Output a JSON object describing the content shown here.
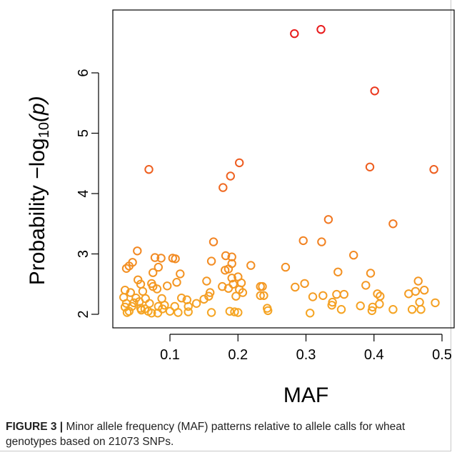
{
  "chart_data": {
    "type": "scatter",
    "xlabel": "MAF",
    "ylabel_prefix": "Probability  −log",
    "ylabel_sub": "10",
    "ylabel_suffix": "(p)",
    "xlim": [
      0.025,
      0.5
    ],
    "ylim": [
      2.0,
      6.72
    ],
    "xticks": [
      0.1,
      0.2,
      0.3,
      0.4,
      0.5
    ],
    "xtick_labels": [
      "0.1",
      "0.2",
      "0.3",
      "0.4",
      "0.5"
    ],
    "yticks": [
      2,
      3,
      4,
      5,
      6
    ],
    "ytick_labels": [
      "2",
      "3",
      "4",
      "5",
      "6"
    ],
    "grid": false,
    "marker": "open-circle",
    "color_scale": {
      "low": "#f5a623",
      "high": "#e8191c",
      "domain": [
        2.0,
        6.75
      ]
    },
    "points": [
      [
        0.283,
        6.65
      ],
      [
        0.322,
        6.72
      ],
      [
        0.401,
        5.7
      ],
      [
        0.202,
        4.51
      ],
      [
        0.394,
        4.44
      ],
      [
        0.488,
        4.4
      ],
      [
        0.069,
        4.4
      ],
      [
        0.189,
        4.29
      ],
      [
        0.178,
        4.1
      ],
      [
        0.333,
        3.57
      ],
      [
        0.428,
        3.5
      ],
      [
        0.296,
        3.22
      ],
      [
        0.323,
        3.2
      ],
      [
        0.164,
        3.2
      ],
      [
        0.052,
        3.05
      ],
      [
        0.37,
        2.98
      ],
      [
        0.191,
        2.95
      ],
      [
        0.182,
        2.97
      ],
      [
        0.078,
        2.94
      ],
      [
        0.087,
        2.93
      ],
      [
        0.104,
        2.93
      ],
      [
        0.108,
        2.92
      ],
      [
        0.161,
        2.88
      ],
      [
        0.045,
        2.86
      ],
      [
        0.191,
        2.84
      ],
      [
        0.04,
        2.8
      ],
      [
        0.036,
        2.76
      ],
      [
        0.083,
        2.78
      ],
      [
        0.219,
        2.81
      ],
      [
        0.27,
        2.78
      ],
      [
        0.075,
        2.69
      ],
      [
        0.181,
        2.73
      ],
      [
        0.186,
        2.75
      ],
      [
        0.395,
        2.68
      ],
      [
        0.347,
        2.7
      ],
      [
        0.465,
        2.55
      ],
      [
        0.115,
        2.67
      ],
      [
        0.2,
        2.62
      ],
      [
        0.191,
        2.6
      ],
      [
        0.053,
        2.57
      ],
      [
        0.073,
        2.51
      ],
      [
        0.11,
        2.53
      ],
      [
        0.205,
        2.52
      ],
      [
        0.193,
        2.5
      ],
      [
        0.057,
        2.5
      ],
      [
        0.075,
        2.46
      ],
      [
        0.177,
        2.46
      ],
      [
        0.186,
        2.43
      ],
      [
        0.298,
        2.51
      ],
      [
        0.388,
        2.48
      ],
      [
        0.154,
        2.55
      ],
      [
        0.236,
        2.46
      ],
      [
        0.202,
        2.41
      ],
      [
        0.233,
        2.46
      ],
      [
        0.284,
        2.45
      ],
      [
        0.06,
        2.38
      ],
      [
        0.042,
        2.36
      ],
      [
        0.096,
        2.47
      ],
      [
        0.081,
        2.42
      ],
      [
        0.034,
        2.4
      ],
      [
        0.159,
        2.36
      ],
      [
        0.207,
        2.36
      ],
      [
        0.157,
        2.3
      ],
      [
        0.345,
        2.33
      ],
      [
        0.356,
        2.33
      ],
      [
        0.405,
        2.34
      ],
      [
        0.409,
        2.3
      ],
      [
        0.451,
        2.34
      ],
      [
        0.461,
        2.38
      ],
      [
        0.474,
        2.4
      ],
      [
        0.233,
        2.31
      ],
      [
        0.238,
        2.31
      ],
      [
        0.197,
        2.3
      ],
      [
        0.31,
        2.29
      ],
      [
        0.325,
        2.31
      ],
      [
        0.05,
        2.27
      ],
      [
        0.064,
        2.26
      ],
      [
        0.088,
        2.26
      ],
      [
        0.117,
        2.27
      ],
      [
        0.125,
        2.24
      ],
      [
        0.139,
        2.18
      ],
      [
        0.15,
        2.25
      ],
      [
        0.032,
        2.28
      ],
      [
        0.047,
        2.19
      ],
      [
        0.055,
        2.21
      ],
      [
        0.07,
        2.18
      ],
      [
        0.083,
        2.13
      ],
      [
        0.092,
        2.15
      ],
      [
        0.107,
        2.13
      ],
      [
        0.127,
        2.13
      ],
      [
        0.044,
        2.13
      ],
      [
        0.036,
        2.18
      ],
      [
        0.338,
        2.15
      ],
      [
        0.339,
        2.2
      ],
      [
        0.38,
        2.14
      ],
      [
        0.398,
        2.12
      ],
      [
        0.408,
        2.17
      ],
      [
        0.428,
        2.08
      ],
      [
        0.456,
        2.08
      ],
      [
        0.469,
        2.08
      ],
      [
        0.467,
        2.2
      ],
      [
        0.49,
        2.19
      ],
      [
        0.243,
        2.1
      ],
      [
        0.244,
        2.06
      ],
      [
        0.034,
        2.12
      ],
      [
        0.058,
        2.07
      ],
      [
        0.068,
        2.05
      ],
      [
        0.04,
        2.05
      ],
      [
        0.082,
        2.02
      ],
      [
        0.089,
        2.09
      ],
      [
        0.127,
        2.04
      ],
      [
        0.112,
        2.03
      ],
      [
        0.161,
        2.03
      ],
      [
        0.195,
        2.04
      ],
      [
        0.188,
        2.05
      ],
      [
        0.2,
        2.03
      ],
      [
        0.352,
        2.08
      ],
      [
        0.397,
        2.06
      ],
      [
        0.306,
        2.02
      ],
      [
        0.063,
        2.09
      ],
      [
        0.037,
        2.03
      ],
      [
        0.073,
        2.02
      ],
      [
        0.057,
        2.1
      ],
      [
        0.1,
        2.05
      ]
    ]
  },
  "caption": {
    "label": "FIGURE 3 |",
    "text": " Minor allele frequency (MAF) patterns relative to allele calls for wheat genotypes based on 21073 SNPs."
  }
}
